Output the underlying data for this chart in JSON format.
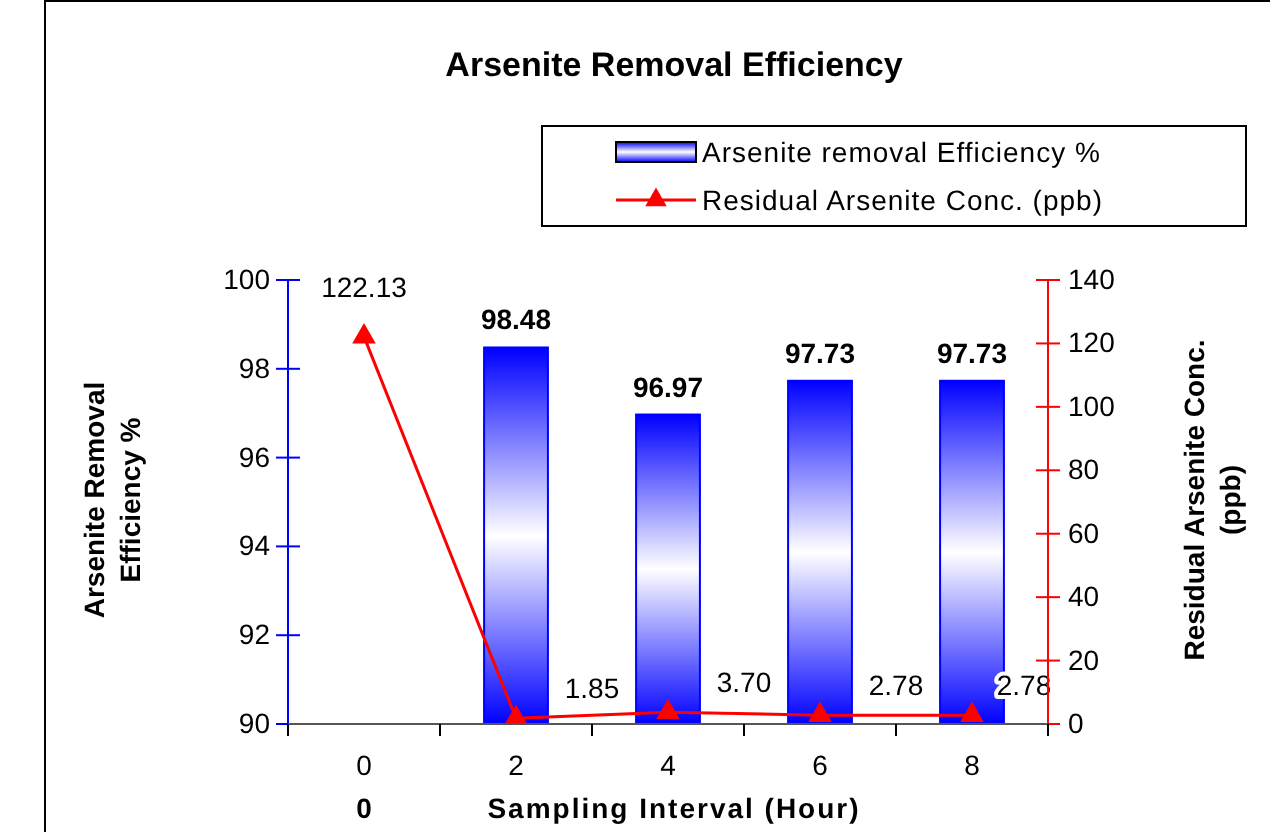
{
  "chart_data": {
    "type": "bar",
    "title": "Arsenite Removal Efficiency",
    "xlabel": "Sampling Interval (Hour)",
    "ylabel": "Arsenite Removal Efficiency %",
    "y2label": "Residual Arsenite Conc. (ppb)",
    "categories": [
      "0",
      "2",
      "4",
      "6",
      "8"
    ],
    "series": [
      {
        "name": "Arsenite removal Efficiency %",
        "color": "#0000ff",
        "values": [
          null,
          98.48,
          96.97,
          97.73,
          97.73
        ],
        "value_labels": [
          null,
          "98.48",
          "96.97",
          "97.73",
          "97.73"
        ]
      },
      {
        "name": "Residual Arsenite Conc. (ppb)",
        "type": "line",
        "axis": "y2",
        "color": "#ff0000",
        "marker": "triangle",
        "values": [
          122.13,
          1.85,
          3.7,
          2.78,
          2.78
        ],
        "value_labels": [
          "122.13",
          "1.85",
          "3.70",
          "2.78",
          "2.78"
        ]
      }
    ],
    "ylim": [
      90,
      100
    ],
    "yticks": [
      90,
      92,
      94,
      96,
      98,
      100
    ],
    "y2lim": [
      0,
      140
    ],
    "y2ticks": [
      0,
      20,
      40,
      60,
      80,
      100,
      120,
      140
    ],
    "annotations": [
      "0"
    ],
    "legend": "top right",
    "grid": false
  }
}
